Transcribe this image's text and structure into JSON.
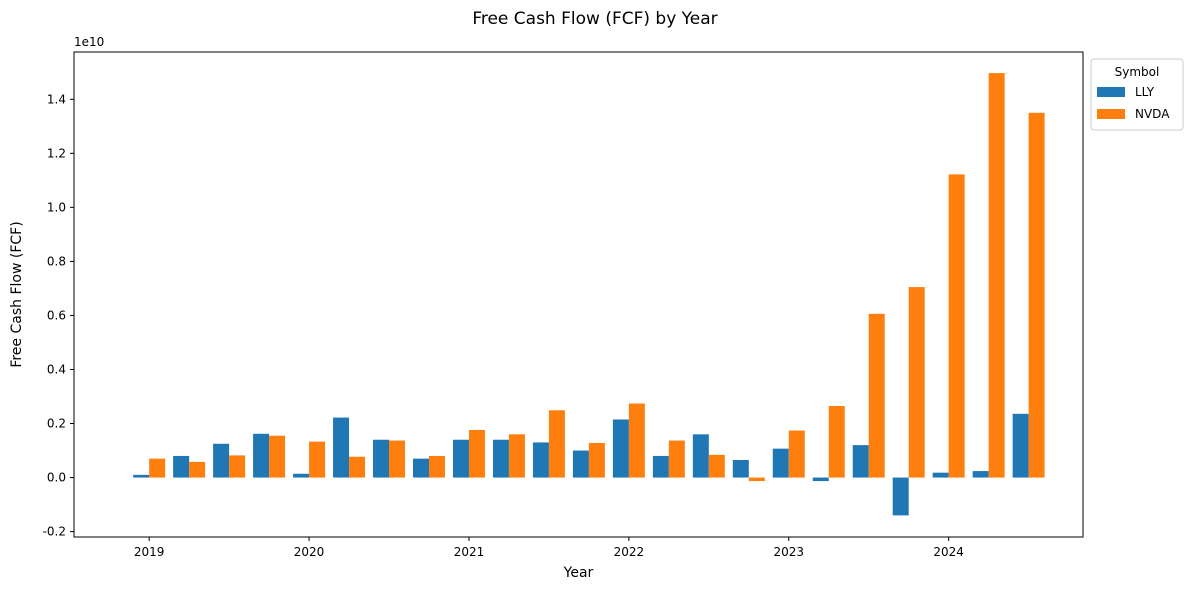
{
  "chart_data": {
    "type": "bar",
    "title": "Free Cash Flow (FCF) by Year",
    "xlabel": "Year",
    "ylabel": "Free Cash Flow (FCF)",
    "y_offset_label": "1e10",
    "ylim": [
      -0.22,
      1.575
    ],
    "y_unit_multiplier": 10000000000,
    "yticks": [
      -0.2,
      0.0,
      0.2,
      0.4,
      0.6,
      0.8,
      1.0,
      1.2,
      1.4
    ],
    "xlim": [
      2018.53,
      2024.84
    ],
    "xticks": [
      2019,
      2020,
      2021,
      2022,
      2023,
      2024
    ],
    "x": [
      2019.0,
      2019.25,
      2019.5,
      2019.75,
      2020.0,
      2020.25,
      2020.5,
      2020.75,
      2021.0,
      2021.25,
      2021.5,
      2021.75,
      2022.0,
      2022.25,
      2022.5,
      2022.75,
      2023.0,
      2023.25,
      2023.5,
      2023.75,
      2024.0,
      2024.25,
      2024.5
    ],
    "series": [
      {
        "name": "LLY",
        "color": "#1f77b4",
        "values": [
          0.01,
          0.08,
          0.125,
          0.162,
          0.014,
          0.222,
          0.14,
          0.07,
          0.14,
          0.14,
          0.13,
          0.1,
          0.215,
          0.08,
          0.16,
          0.065,
          0.107,
          -0.013,
          0.12,
          -0.14,
          0.018,
          0.024,
          0.236
        ]
      },
      {
        "name": "NVDA",
        "color": "#ff7f0e",
        "values": [
          0.07,
          0.058,
          0.082,
          0.155,
          0.133,
          0.077,
          0.137,
          0.08,
          0.176,
          0.16,
          0.249,
          0.128,
          0.274,
          0.137,
          0.084,
          -0.013,
          0.174,
          0.265,
          0.606,
          0.705,
          1.122,
          1.497,
          1.35
        ]
      }
    ],
    "legend": {
      "title": "Symbol",
      "placement": "upper-left-outside"
    },
    "grid": false
  }
}
